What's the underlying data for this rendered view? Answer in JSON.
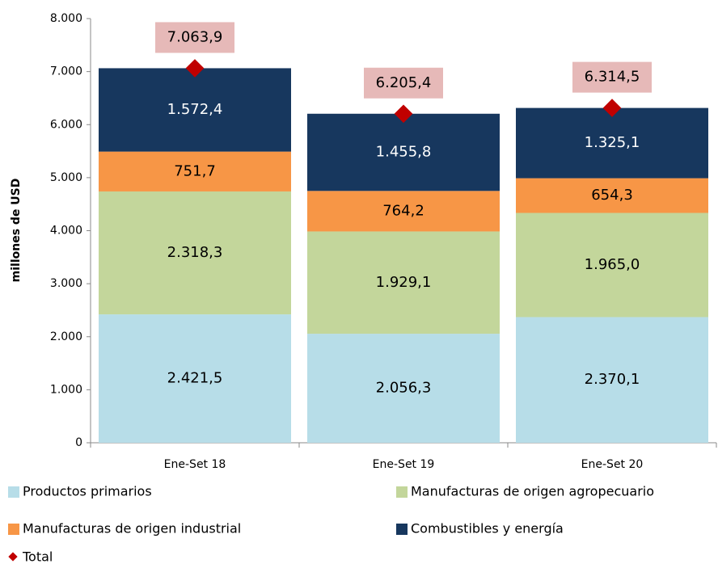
{
  "chart_data": {
    "type": "stacked_bar",
    "y_label": "millones de  USD",
    "categories": [
      "Ene-Set 18",
      "Ene-Set 19",
      "Ene-Set 20"
    ],
    "series": [
      {
        "name": "Productos primarios",
        "color": "#b7dde8",
        "values": [
          2421.5,
          2056.3,
          2370.1
        ],
        "value_labels": [
          "2.421,5",
          "2.056,3",
          "2.370,1"
        ]
      },
      {
        "name": "Manufacturas de origen agropecuario",
        "color": "#c3d69b",
        "values": [
          2318.3,
          1929.1,
          1965.0
        ],
        "value_labels": [
          "2.318,3",
          "1.929,1",
          "1.965,0"
        ]
      },
      {
        "name": "Manufacturas de origen industrial",
        "color": "#f79646",
        "values": [
          751.7,
          764.2,
          654.3
        ],
        "value_labels": [
          "751,7",
          "764,2",
          "654,3"
        ]
      },
      {
        "name": "Combustibles y energía",
        "color": "#17375e",
        "values": [
          1572.4,
          1455.8,
          1325.1
        ],
        "value_labels": [
          "1.572,4",
          "1.455,8",
          "1.325,1"
        ]
      }
    ],
    "total": {
      "name": "Total",
      "color": "#c00000",
      "values": [
        7063.9,
        6205.4,
        6314.5
      ],
      "value_labels": [
        "7.063,9",
        "6.205,4",
        "6.314,5"
      ]
    },
    "ylim": [
      0,
      8000
    ],
    "yticks": [
      0,
      {
        "value": 1000,
        "label": "1.000"
      },
      {
        "value": 2000,
        "label": "2.000"
      },
      {
        "value": 3000,
        "label": "3.000"
      },
      {
        "value": 4000,
        "label": "4.000"
      },
      {
        "value": 5000,
        "label": "5.000"
      },
      {
        "value": 6000,
        "label": "6.000"
      },
      {
        "value": 7000,
        "label": "7.000"
      },
      {
        "value": 8000,
        "label": "8.000"
      }
    ]
  }
}
